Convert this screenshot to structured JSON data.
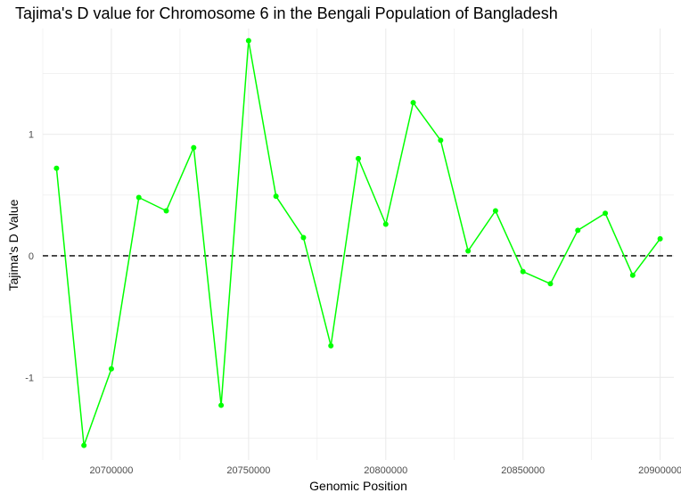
{
  "chart_data": {
    "type": "line",
    "title": "Tajima's D value for Chromosome 6 in the Bengali Population of Bangladesh",
    "xlabel": "Genomic Position",
    "ylabel": "Tajima's D Value",
    "x": [
      20680000,
      20690000,
      20700000,
      20710000,
      20720000,
      20730000,
      20740000,
      20750000,
      20760000,
      20770000,
      20780000,
      20790000,
      20800000,
      20810000,
      20820000,
      20830000,
      20840000,
      20850000,
      20860000,
      20870000,
      20880000,
      20890000,
      20900000
    ],
    "series": [
      {
        "values": [
          0.72,
          -1.56,
          -0.93,
          0.48,
          0.37,
          0.89,
          -1.23,
          1.77,
          0.49,
          0.15,
          -0.74,
          0.8,
          0.26,
          1.26,
          0.95,
          0.04,
          0.37,
          -0.13,
          -0.23,
          0.21,
          0.35,
          -0.16,
          0.14
        ],
        "color": "#00ff00"
      }
    ],
    "x_ticks": [
      20700000,
      20750000,
      20800000,
      20850000,
      20900000
    ],
    "x_tick_labels": [
      "20700000",
      "20750000",
      "20800000",
      "20850000",
      "20900000"
    ],
    "y_ticks": [
      -1,
      0,
      1
    ],
    "y_tick_labels": [
      "-1",
      "0",
      "1"
    ],
    "xlim": [
      20675000,
      20905000
    ],
    "ylim": [
      -1.68,
      1.87
    ],
    "reference_line": {
      "y": 0,
      "style": "dashed",
      "color": "#000000"
    },
    "grid": true,
    "grid_color": "#ebebeb",
    "background": "#ffffff"
  }
}
